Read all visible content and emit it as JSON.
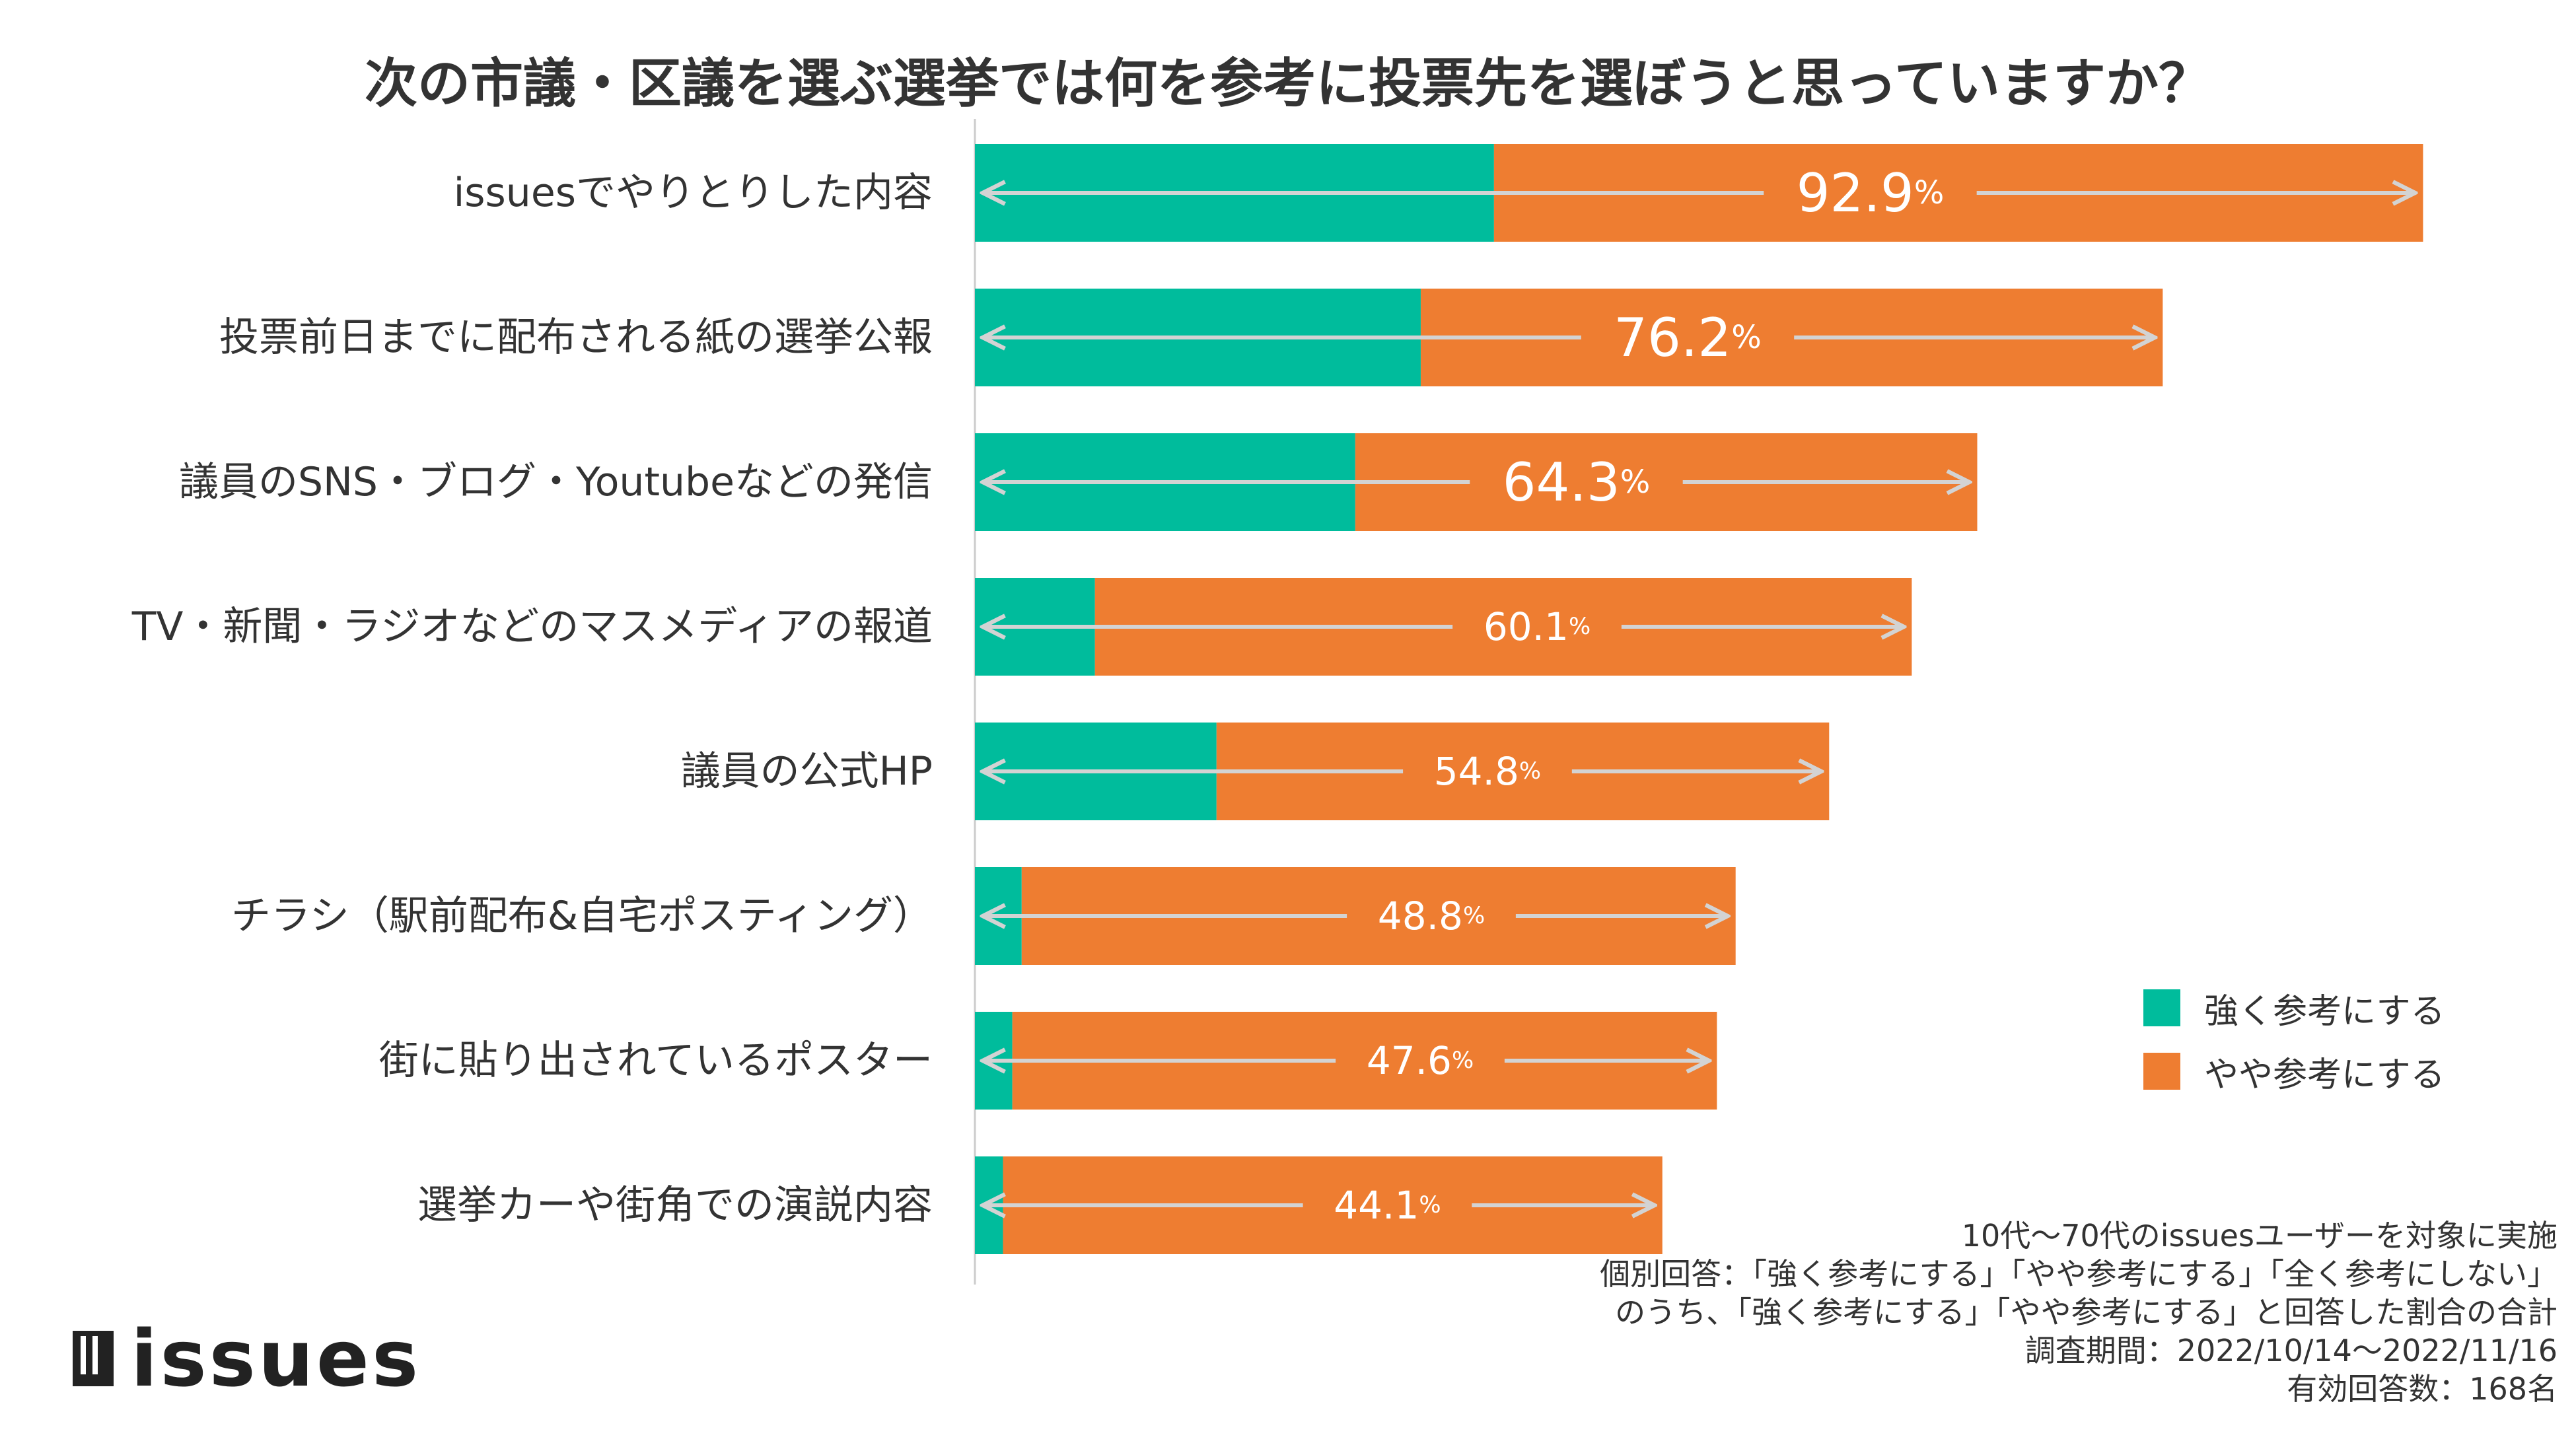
{
  "title": "次の市議・区議を選ぶ選挙では何を参考に投票先を選ぼうと思っていますか？",
  "legend": [
    {
      "label": "強く参考にする",
      "color": "#00BC9C"
    },
    {
      "label": "やや参考にする",
      "color": "#EE7D31"
    }
  ],
  "notes": [
    "10代〜70代のissuesユーザーを対象に実施",
    "個別回答：「強く参考にする」「やや参考にする」「全く参考にしない」",
    "のうち、「強く参考にする」「やや参考にする」と回答した割合の合計",
    "調査期間：2022/10/14〜2022/11/16",
    "有効回答数：168名"
  ],
  "logo": {
    "text": "issues"
  },
  "chart_data": {
    "type": "bar",
    "orientation": "horizontal",
    "stacked": true,
    "title": "次の市議・区議を選ぶ選挙では何を参考に投票先を選ぼうと思っていますか？",
    "categories": [
      "issuesでやりとりした内容",
      "投票前日までに配布される紙の選挙公報",
      "議員のSNS・ブログ・Youtubeなどの発信",
      "TV・新聞・ラジオなどのマスメディアの報道",
      "議員の公式HP",
      "チラシ（駅前配布&自宅ポスティング）",
      "街に貼り出されているポスター",
      "選挙カーや街角での演説内容"
    ],
    "series": [
      {
        "name": "強く参考にする",
        "color": "#00BC9C",
        "values": [
          33.3,
          28.6,
          24.4,
          7.7,
          15.5,
          3.0,
          2.4,
          1.8
        ]
      },
      {
        "name": "やや参考にする",
        "color": "#EE7D31",
        "values": [
          59.6,
          47.6,
          39.9,
          52.4,
          39.3,
          45.8,
          45.2,
          42.3
        ]
      }
    ],
    "totals": [
      92.9,
      76.2,
      64.3,
      60.1,
      54.8,
      48.8,
      47.6,
      44.1
    ],
    "total_labels": [
      "92.9",
      "76.2",
      "64.3",
      "60.1",
      "54.8",
      "48.8",
      "47.6",
      "44.1"
    ],
    "unit": "%",
    "xlim": [
      0,
      100
    ],
    "grid": false,
    "legend_position": "right"
  }
}
